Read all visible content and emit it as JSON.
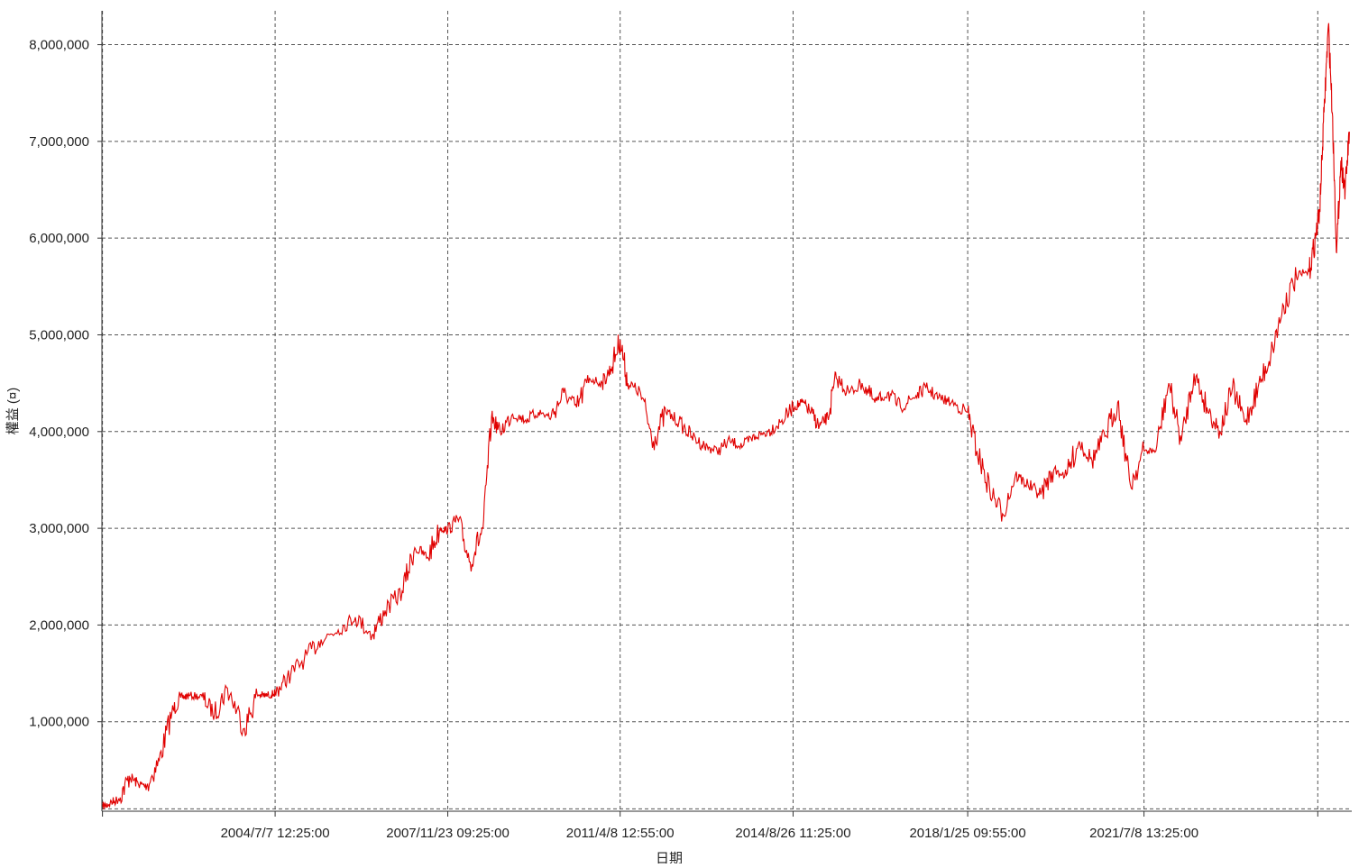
{
  "chart_data": {
    "type": "line",
    "title": "",
    "xlabel": "日期",
    "ylabel": "權益 (¤)",
    "ylim": [
      75000,
      8350000
    ],
    "grid": true,
    "legend": "none",
    "y_ticks": [
      {
        "value": 1000000,
        "label": "1,000,000"
      },
      {
        "value": 2000000,
        "label": "2,000,000"
      },
      {
        "value": 3000000,
        "label": "3,000,000"
      },
      {
        "value": 4000000,
        "label": "4,000,000"
      },
      {
        "value": 5000000,
        "label": "5,000,000"
      },
      {
        "value": 6000000,
        "label": "6,000,000"
      },
      {
        "value": 7000000,
        "label": "7,000,000"
      },
      {
        "value": 8000000,
        "label": "8,000,000"
      }
    ],
    "x_ticks": [
      {
        "value": "2001-02-19",
        "label": ""
      },
      {
        "value": "2004-07-07",
        "label": "2004/7/7 12:25:00"
      },
      {
        "value": "2007-11-23",
        "label": "2007/11/23 09:25:00"
      },
      {
        "value": "2011-04-08",
        "label": "2011/4/8 12:55:00"
      },
      {
        "value": "2014-08-26",
        "label": "2014/8/26 11:25:00"
      },
      {
        "value": "2018-01-25",
        "label": "2018/1/25 09:55:00"
      },
      {
        "value": "2021-07-08",
        "label": "2021/7/8 13:25:00"
      },
      {
        "value": "2024-12-01",
        "label": ""
      }
    ],
    "xlim": [
      "2001-02-15",
      "2025-08-01"
    ],
    "baseline": {
      "value": 100000
    },
    "colors": {
      "line": "#e00000",
      "accent": "#008000",
      "grid": "#555555"
    },
    "series": [
      {
        "name": "",
        "x": [
          "2001-02-20",
          "2001-04-15",
          "2001-06-15",
          "2001-09-01",
          "2001-11-01",
          "2002-01-01",
          "2002-04-01",
          "2002-07-01",
          "2002-09-01",
          "2002-11-01",
          "2003-02-01",
          "2003-05-01",
          "2003-08-01",
          "2003-12-01",
          "2004-03-01",
          "2004-05-01",
          "2004-07-01",
          "2004-07-07",
          "2004-10-01",
          "2005-02-01",
          "2005-06-01",
          "2005-10-01",
          "2006-02-01",
          "2006-06-01",
          "2006-09-01",
          "2007-01-01",
          "2007-04-01",
          "2007-07-01",
          "2007-10-01",
          "2007-11-23",
          "2008-02-01",
          "2008-05-01",
          "2008-08-01",
          "2008-10-01",
          "2008-12-01",
          "2009-03-01",
          "2009-06-01",
          "2009-09-01",
          "2009-12-01",
          "2010-03-01",
          "2010-06-01",
          "2010-09-01",
          "2010-12-01",
          "2011-02-01",
          "2011-04-08",
          "2011-06-01",
          "2011-09-01",
          "2011-12-01",
          "2012-03-01",
          "2012-06-01",
          "2012-09-01",
          "2012-12-01",
          "2013-03-01",
          "2013-06-01",
          "2013-09-01",
          "2013-12-01",
          "2014-03-01",
          "2014-06-01",
          "2014-08-26",
          "2014-11-01",
          "2015-01-01",
          "2015-03-01",
          "2015-05-01",
          "2015-07-01",
          "2015-10-01",
          "2016-01-01",
          "2016-04-01",
          "2016-07-01",
          "2016-10-01",
          "2017-01-01",
          "2017-04-01",
          "2017-07-01",
          "2017-10-01",
          "2018-01-25",
          "2018-04-01",
          "2018-07-01",
          "2018-10-01",
          "2019-01-01",
          "2019-04-01",
          "2019-07-01",
          "2019-10-01",
          "2020-01-01",
          "2020-04-01",
          "2020-07-01",
          "2020-10-01",
          "2021-01-01",
          "2021-04-01",
          "2021-07-08",
          "2021-10-01",
          "2022-01-01",
          "2022-04-01",
          "2022-07-01",
          "2022-10-01",
          "2023-01-01",
          "2023-04-01",
          "2023-07-01",
          "2023-10-01",
          "2024-01-01",
          "2024-04-01",
          "2024-07-01",
          "2024-10-01",
          "2024-11-15",
          "2024-12-15",
          "2025-01-15",
          "2025-02-15",
          "2025-03-15",
          "2025-04-15",
          "2025-05-15",
          "2025-06-15",
          "2025-07-15"
        ],
        "values": [
          120000,
          160000,
          200000,
          430000,
          360000,
          330000,
          600000,
          1100000,
          1250000,
          1270000,
          1260000,
          1080000,
          1350000,
          930000,
          1280000,
          1270000,
          1290000,
          1300000,
          1450000,
          1650000,
          1850000,
          1950000,
          2080000,
          1900000,
          2150000,
          2350000,
          2800000,
          2700000,
          3000000,
          2980000,
          3100000,
          2650000,
          3000000,
          4150000,
          4000000,
          4180000,
          4120000,
          4200000,
          4150000,
          4400000,
          4250000,
          4550000,
          4500000,
          4650000,
          4950000,
          4500000,
          4400000,
          3900000,
          4200000,
          4100000,
          3950000,
          3850000,
          3800000,
          3900000,
          3850000,
          3950000,
          4000000,
          4100000,
          4250000,
          4300000,
          4200000,
          4050000,
          4150000,
          4550000,
          4400000,
          4500000,
          4300000,
          4400000,
          4250000,
          4350000,
          4450000,
          4350000,
          4300000,
          4200000,
          3800000,
          3400000,
          3150000,
          3550000,
          3450000,
          3350000,
          3600000,
          3550000,
          3900000,
          3700000,
          3950000,
          4300000,
          3450000,
          3800000,
          3800000,
          4500000,
          3900000,
          4600000,
          4250000,
          4000000,
          4450000,
          4100000,
          4450000,
          4800000,
          5300000,
          5600000,
          5650000,
          6000000,
          6300000,
          7300000,
          8200000,
          7300000,
          5850000,
          6800000,
          6500000,
          7100000
        ]
      }
    ]
  }
}
